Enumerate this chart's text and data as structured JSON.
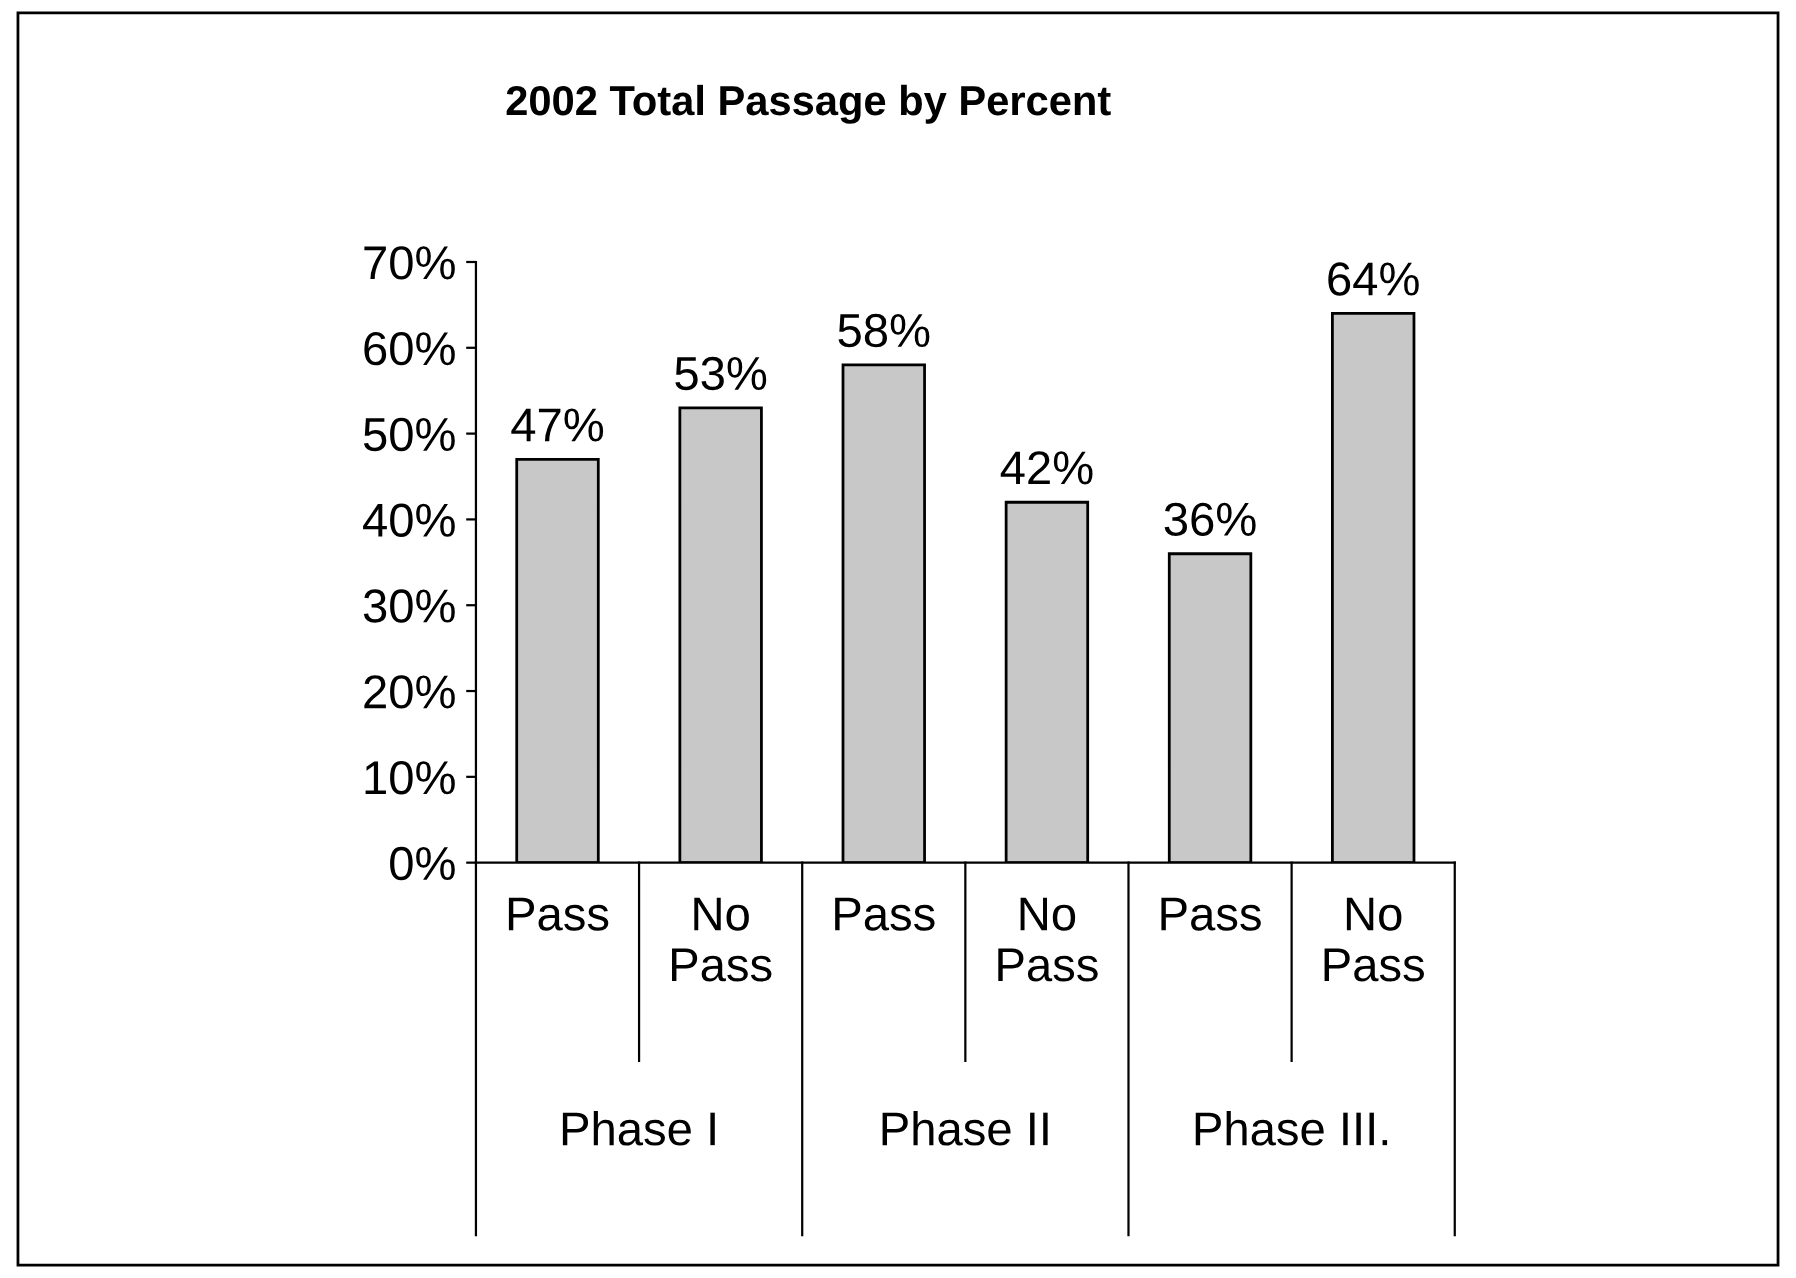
{
  "chart_data": {
    "type": "bar",
    "title": "2002 Total Passage by Percent",
    "categories": [
      "Pass",
      "No Pass",
      "Pass",
      "No Pass",
      "Pass",
      "No Pass"
    ],
    "values": [
      47,
      53,
      58,
      42,
      36,
      64
    ],
    "value_labels": [
      "47%",
      "53%",
      "58%",
      "42%",
      "36%",
      "64%"
    ],
    "color": "#c8c8c8",
    "ylim": [
      0,
      70
    ],
    "yticks": [
      {
        "value": 0,
        "label": "0%"
      },
      {
        "value": 10,
        "label": "10%"
      },
      {
        "value": 20,
        "label": "20%"
      },
      {
        "value": 30,
        "label": "30%"
      },
      {
        "value": 40,
        "label": "40%"
      },
      {
        "value": 50,
        "label": "50%"
      },
      {
        "value": 60,
        "label": "60%"
      },
      {
        "value": 70,
        "label": "70%"
      }
    ],
    "annotations": [
      "Phase I",
      "Phase II",
      "Phase III."
    ],
    "grid": false
  }
}
